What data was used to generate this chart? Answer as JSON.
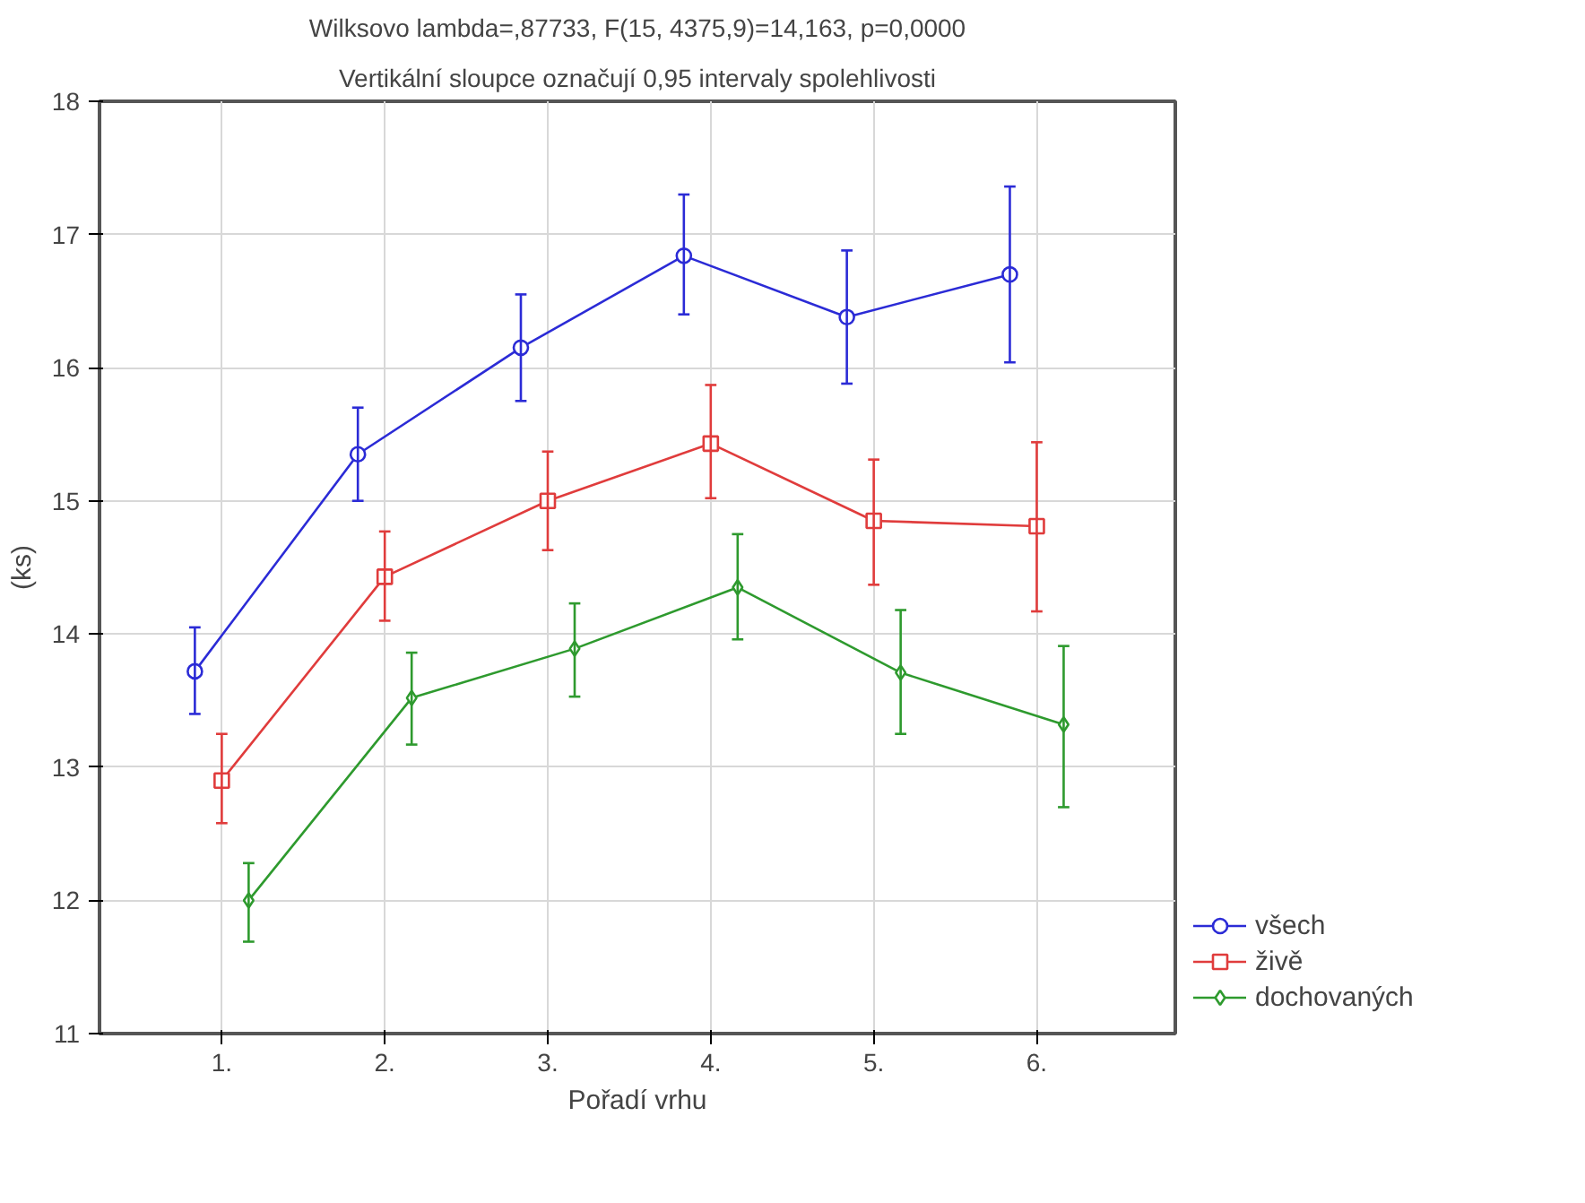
{
  "chart_data": {
    "type": "line",
    "title": "Wilksovo lambda=,87733, F(15, 4375,9)=14,163, p=0,0000",
    "subtitle": "Vertikální sloupce označují 0,95 intervaly spolehlivosti",
    "xlabel": "Pořadí vrhu",
    "ylabel": "(ks)",
    "categories": [
      "1.",
      "2.",
      "3.",
      "4.",
      "5.",
      "6."
    ],
    "ylim": [
      11,
      18
    ],
    "yticks": [
      11,
      12,
      13,
      14,
      15,
      16,
      17,
      18
    ],
    "grid": true,
    "legend": "bottom right",
    "series": [
      {
        "name": "všech",
        "color": "#2b2bd6",
        "marker": "circle",
        "values": [
          13.72,
          15.35,
          16.15,
          16.84,
          16.38,
          16.7
        ],
        "errors": [
          [
            13.4,
            14.05
          ],
          [
            15.0,
            15.7
          ],
          [
            15.75,
            16.55
          ],
          [
            16.4,
            17.3
          ],
          [
            15.88,
            16.88
          ],
          [
            16.04,
            17.36
          ]
        ]
      },
      {
        "name": "živě",
        "color": "#e03c3c",
        "marker": "square",
        "values": [
          12.9,
          14.43,
          15.0,
          15.43,
          14.85,
          14.81
        ],
        "errors": [
          [
            12.58,
            13.25
          ],
          [
            14.1,
            14.77
          ],
          [
            14.63,
            15.37
          ],
          [
            15.02,
            15.87
          ],
          [
            14.37,
            15.31
          ],
          [
            14.17,
            15.44
          ]
        ]
      },
      {
        "name": "dochovaných",
        "color": "#2e9a2e",
        "marker": "diamond",
        "values": [
          12.0,
          13.52,
          13.89,
          14.35,
          13.71,
          13.32
        ],
        "errors": [
          [
            11.69,
            12.28
          ],
          [
            13.17,
            13.86
          ],
          [
            13.53,
            14.23
          ],
          [
            13.96,
            14.75
          ],
          [
            13.25,
            14.18
          ],
          [
            12.7,
            13.91
          ]
        ]
      }
    ]
  }
}
